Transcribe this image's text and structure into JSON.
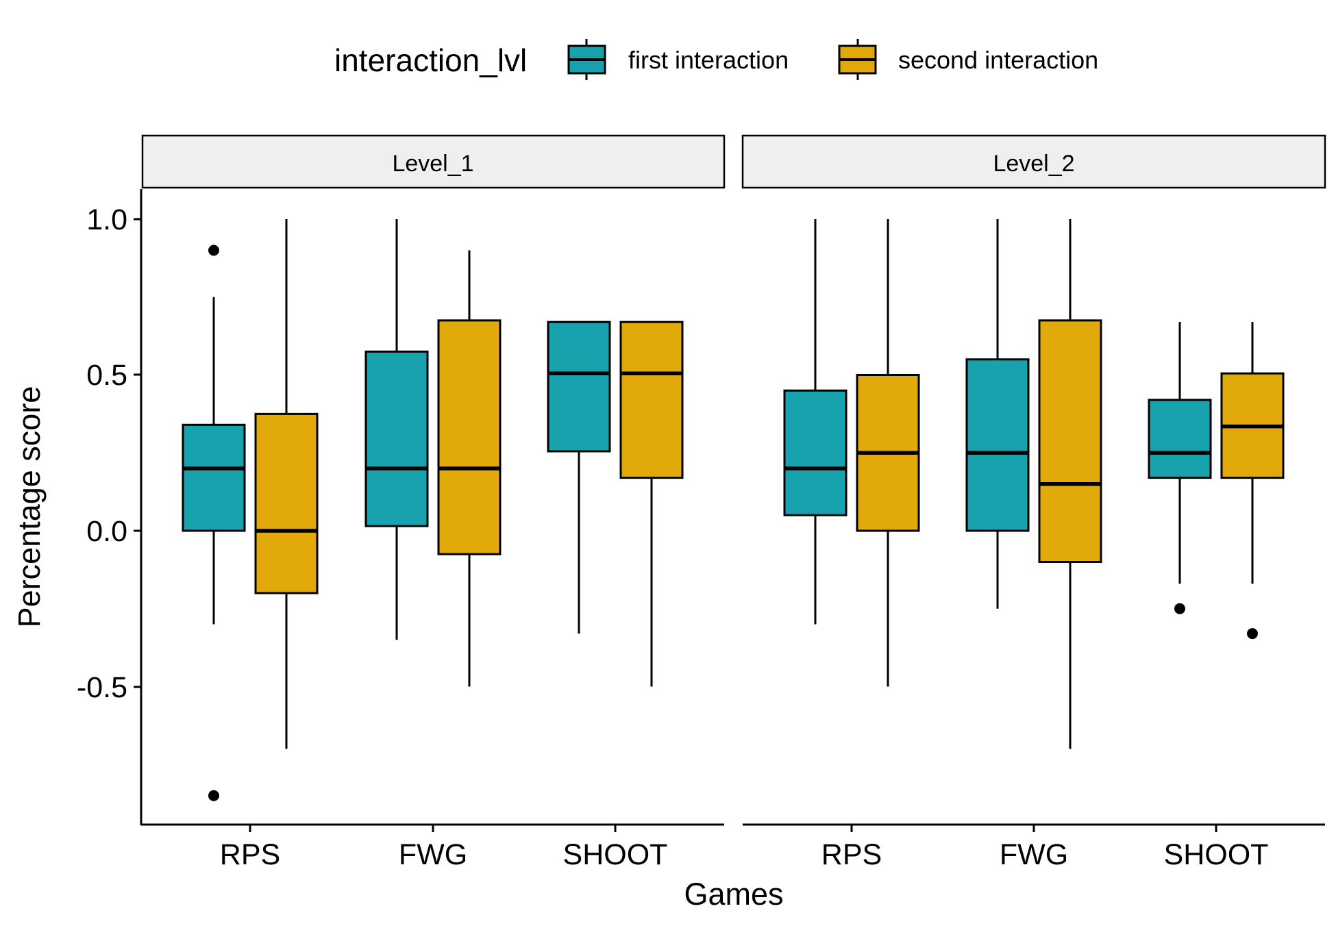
{
  "legend": {
    "title": "interaction_lvl",
    "items": [
      {
        "label": "first interaction",
        "color": "#17A2AE"
      },
      {
        "label": "second interaction",
        "color": "#E1AA0A"
      }
    ]
  },
  "facets": [
    "Level_1",
    "Level_2"
  ],
  "xlabel": "Games",
  "ylabel": "Percentage score",
  "y_ticks": [
    "-0.5",
    "0.0",
    "0.5",
    "1.0"
  ],
  "chart_data": {
    "type": "boxplot",
    "title": "",
    "xlabel": "Games",
    "ylabel": "Percentage score",
    "categories": [
      "RPS",
      "FWG",
      "SHOOT"
    ],
    "ylim": [
      -0.93,
      1.1
    ],
    "y_ticks": [
      -0.5,
      0.0,
      0.5,
      1.0
    ],
    "legend_position": "top",
    "grid": false,
    "facets": [
      {
        "name": "Level_1",
        "series": [
          {
            "name": "first interaction",
            "color": "#17A2AE",
            "boxes": [
              {
                "category": "RPS",
                "min": -0.3,
                "q1": 0.0,
                "median": 0.2,
                "q3": 0.34,
                "max": 0.75,
                "outliers": [
                  0.9,
                  -0.85
                ]
              },
              {
                "category": "FWG",
                "min": -0.35,
                "q1": 0.015,
                "median": 0.2,
                "q3": 0.575,
                "max": 1.0,
                "outliers": []
              },
              {
                "category": "SHOOT",
                "min": -0.33,
                "q1": 0.255,
                "median": 0.505,
                "q3": 0.67,
                "max": 0.67,
                "outliers": []
              }
            ]
          },
          {
            "name": "second interaction",
            "color": "#E1AA0A",
            "boxes": [
              {
                "category": "RPS",
                "min": -0.7,
                "q1": -0.2,
                "median": 0.0,
                "q3": 0.375,
                "max": 1.0,
                "outliers": []
              },
              {
                "category": "FWG",
                "min": -0.5,
                "q1": -0.075,
                "median": 0.2,
                "q3": 0.675,
                "max": 0.9,
                "outliers": []
              },
              {
                "category": "SHOOT",
                "min": -0.5,
                "q1": 0.17,
                "median": 0.505,
                "q3": 0.67,
                "max": 0.67,
                "outliers": []
              }
            ]
          }
        ]
      },
      {
        "name": "Level_2",
        "series": [
          {
            "name": "first interaction",
            "color": "#17A2AE",
            "boxes": [
              {
                "category": "RPS",
                "min": -0.3,
                "q1": 0.05,
                "median": 0.2,
                "q3": 0.45,
                "max": 1.0,
                "outliers": []
              },
              {
                "category": "FWG",
                "min": -0.25,
                "q1": 0.0,
                "median": 0.25,
                "q3": 0.55,
                "max": 1.0,
                "outliers": []
              },
              {
                "category": "SHOOT",
                "min": -0.17,
                "q1": 0.17,
                "median": 0.25,
                "q3": 0.42,
                "max": 0.67,
                "outliers": [
                  -0.25
                ]
              }
            ]
          },
          {
            "name": "second interaction",
            "color": "#E1AA0A",
            "boxes": [
              {
                "category": "RPS",
                "min": -0.5,
                "q1": 0.0,
                "median": 0.25,
                "q3": 0.5,
                "max": 1.0,
                "outliers": []
              },
              {
                "category": "FWG",
                "min": -0.7,
                "q1": -0.1,
                "median": 0.15,
                "q3": 0.675,
                "max": 1.0,
                "outliers": []
              },
              {
                "category": "SHOOT",
                "min": -0.17,
                "q1": 0.17,
                "median": 0.335,
                "q3": 0.505,
                "max": 0.67,
                "outliers": [
                  -0.33
                ]
              }
            ]
          }
        ]
      }
    ]
  }
}
